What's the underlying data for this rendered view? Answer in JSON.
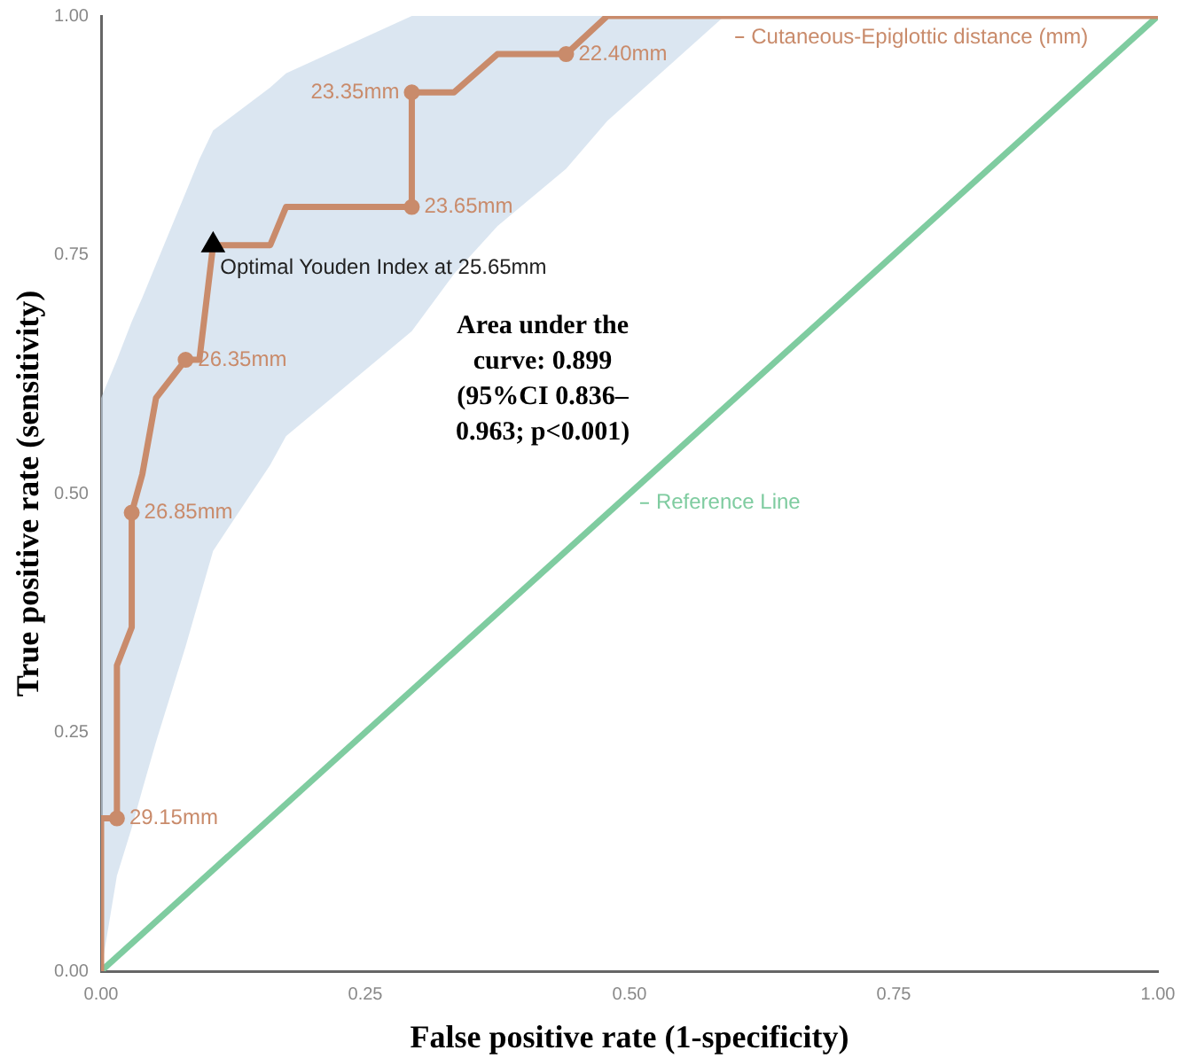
{
  "chart_data": {
    "type": "line",
    "xlabel": "False positive rate (1-specificity)",
    "ylabel": "True positive rate (sensitivity)",
    "xlim": [
      0,
      1
    ],
    "ylim": [
      0,
      1
    ],
    "xticks": [
      {
        "value": 0,
        "label": "0.00"
      },
      {
        "value": 0.25,
        "label": "0.25"
      },
      {
        "value": 0.5,
        "label": "0.50"
      },
      {
        "value": 0.75,
        "label": "0.75"
      },
      {
        "value": 1,
        "label": "1.00"
      }
    ],
    "yticks": [
      {
        "value": 0,
        "label": "0.00"
      },
      {
        "value": 0.25,
        "label": "0.25"
      },
      {
        "value": 0.5,
        "label": "0.50"
      },
      {
        "value": 0.75,
        "label": "0.75"
      },
      {
        "value": 1,
        "label": "1.00"
      }
    ],
    "grid": false,
    "legend": "top right",
    "series": [
      {
        "name": "Cutaneous-Epiglottic distance (mm)",
        "color": "#c98b6b",
        "marker": "none",
        "x": [
          0,
          0,
          0.015,
          0.015,
          0.029,
          0.029,
          0.039,
          0.052,
          0.08,
          0.093,
          0.106,
          0.16,
          0.175,
          0.294,
          0.294,
          0.334,
          0.375,
          0.44,
          0.479,
          0.59,
          1
        ],
        "values": [
          0,
          0.16,
          0.16,
          0.32,
          0.36,
          0.48,
          0.52,
          0.6,
          0.64,
          0.64,
          0.76,
          0.76,
          0.8,
          0.8,
          0.92,
          0.92,
          0.96,
          0.96,
          1,
          1,
          1
        ],
        "lower": [
          0,
          0,
          0.1,
          0.1,
          0.15,
          0.15,
          0.19,
          0.24,
          0.34,
          0.39,
          0.44,
          0.53,
          0.56,
          0.67,
          0.67,
          0.73,
          0.78,
          0.84,
          0.89,
          1,
          1
        ],
        "upper": [
          0.6,
          0.6,
          0.64,
          0.64,
          0.68,
          0.68,
          0.705,
          0.74,
          0.815,
          0.85,
          0.88,
          0.925,
          0.94,
          1,
          1,
          1,
          1,
          1,
          1,
          1,
          1
        ]
      },
      {
        "name": "Reference Line",
        "color": "#7fcca0",
        "marker": "none",
        "x": [
          0,
          1
        ],
        "values": [
          0,
          1
        ]
      },
      {
        "type": "scatter",
        "color": "#c98b6b",
        "marker": "circle",
        "x": [
          0.015,
          0.029,
          0.08,
          0.294,
          0.294,
          0.44
        ],
        "values": [
          0.16,
          0.48,
          0.64,
          0.8,
          0.92,
          0.96
        ]
      },
      {
        "type": "scatter",
        "color": "#000000",
        "marker": "triangle",
        "x": [
          0.106
        ],
        "values": [
          0.76
        ]
      }
    ],
    "annotations": [
      {
        "text": "Optimal Youden Index at 25.65mm",
        "x": 0.106,
        "y": 0.76
      },
      {
        "text": "29.15mm",
        "x": 0.015,
        "y": 0.16
      },
      {
        "text": "26.85mm",
        "x": 0.029,
        "y": 0.48
      },
      {
        "text": "26.35mm",
        "x": 0.08,
        "y": 0.64
      },
      {
        "text": "23.65mm",
        "x": 0.294,
        "y": 0.8
      },
      {
        "text": "23.35mm",
        "x": 0.294,
        "y": 0.92
      },
      {
        "text": "22.40mm",
        "x": 0.44,
        "y": 0.96
      },
      "Area under the curve: 0.899 (95%CI 0.836–0.963; p<0.001)"
    ]
  }
}
